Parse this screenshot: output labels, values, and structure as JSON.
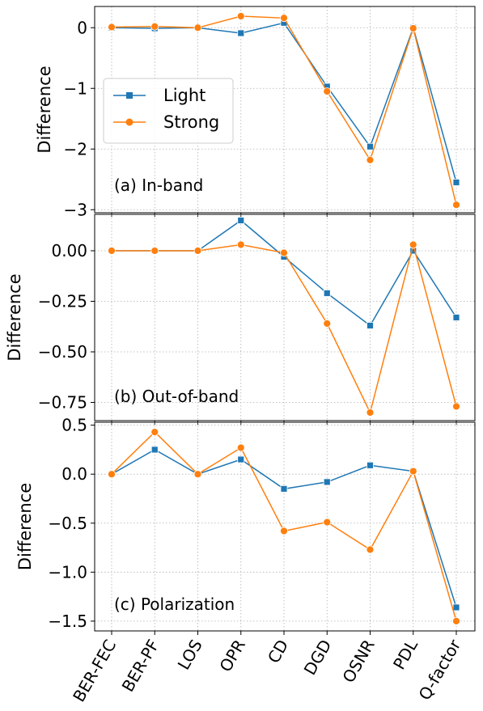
{
  "chart_data": [
    {
      "type": "line",
      "panel_label": "(a) In-band",
      "ylabel": "Difference",
      "categories": [
        "BER-FEC",
        "BER-PF",
        "LOS",
        "OPR",
        "CD",
        "DGD",
        "OSNR",
        "PDL",
        "Q-factor"
      ],
      "yticks": [
        0,
        -1,
        -2,
        -3
      ],
      "ytick_labels": [
        "0",
        "−1",
        "−2",
        "−3"
      ],
      "ylim": [
        -3.05,
        0.35
      ],
      "grid": true,
      "legend": "middle-left",
      "series": [
        {
          "name": "Light",
          "color": "#1f77b4",
          "marker": "square",
          "values": [
            0.0,
            -0.01,
            0.0,
            -0.09,
            0.08,
            -0.97,
            -1.96,
            0.0,
            -2.55
          ]
        },
        {
          "name": "Strong",
          "color": "#ff7f0e",
          "marker": "circle",
          "values": [
            0.01,
            0.02,
            0.0,
            0.19,
            0.16,
            -1.05,
            -2.18,
            -0.01,
            -2.92
          ]
        }
      ]
    },
    {
      "type": "line",
      "panel_label": "(b) Out-of-band",
      "ylabel": "Difference",
      "categories": [
        "BER-FEC",
        "BER-PF",
        "LOS",
        "OPR",
        "CD",
        "DGD",
        "OSNR",
        "PDL",
        "Q-factor"
      ],
      "yticks": [
        0.0,
        -0.25,
        -0.5,
        -0.75
      ],
      "ytick_labels": [
        "0.00",
        "−0.25",
        "−0.50",
        "−0.75"
      ],
      "ylim": [
        -0.84,
        0.18
      ],
      "grid": true,
      "series": [
        {
          "name": "Light",
          "color": "#1f77b4",
          "marker": "square",
          "values": [
            0.0,
            0.0,
            0.0,
            0.15,
            -0.03,
            -0.21,
            -0.37,
            0.0,
            -0.33
          ]
        },
        {
          "name": "Strong",
          "color": "#ff7f0e",
          "marker": "circle",
          "values": [
            0.0,
            0.0,
            0.0,
            0.03,
            -0.01,
            -0.36,
            -0.8,
            0.03,
            -0.77
          ]
        }
      ]
    },
    {
      "type": "line",
      "panel_label": "(c) Polarization",
      "ylabel": "Difference",
      "xlabel": "",
      "categories": [
        "BER-FEC",
        "BER-PF",
        "LOS",
        "OPR",
        "CD",
        "DGD",
        "OSNR",
        "PDL",
        "Q-factor"
      ],
      "yticks": [
        0.5,
        0.0,
        -0.5,
        -1.0,
        -1.5
      ],
      "ytick_labels": [
        "0.5",
        "0.0",
        "−0.5",
        "−1.0",
        "−1.5"
      ],
      "ylim": [
        -1.6,
        0.53
      ],
      "grid": true,
      "series": [
        {
          "name": "Light",
          "color": "#1f77b4",
          "marker": "square",
          "values": [
            0.0,
            0.25,
            0.0,
            0.15,
            -0.15,
            -0.08,
            0.09,
            0.03,
            -1.36
          ]
        },
        {
          "name": "Strong",
          "color": "#ff7f0e",
          "marker": "circle",
          "values": [
            0.0,
            0.43,
            0.0,
            0.27,
            -0.58,
            -0.49,
            -0.77,
            0.03,
            -1.5
          ]
        }
      ]
    }
  ]
}
